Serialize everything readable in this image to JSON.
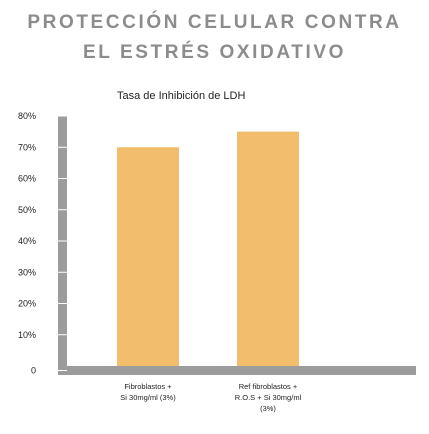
{
  "title_lines": [
    "PROTECCIÓN CELULAR CONTRA",
    "EL ESTRÉS OXIDATIVO"
  ],
  "colors": {
    "title": "#8c8c8c",
    "bar": "#f2be6c",
    "axis": "#9c9c9c",
    "gridline": "#ffffff"
  },
  "chart_data": {
    "type": "bar",
    "title": "Tasa de Inhibición de LDH",
    "xlabel": "",
    "ylabel": "",
    "ylim": [
      0,
      80
    ],
    "yticks": [
      0,
      10,
      20,
      30,
      40,
      50,
      60,
      70,
      80
    ],
    "ytick_labels": [
      "0",
      "10%",
      "20%",
      "30%",
      "40%",
      "50%",
      "60%",
      "70%",
      "80%"
    ],
    "categories": [
      [
        "Fibroblastos +",
        "Si 30mg/ml (3%)"
      ],
      [
        "Ref fibroblastos +",
        "R.O.S + Si 30mg/ml",
        "(3%)"
      ]
    ],
    "values": [
      70,
      75
    ],
    "grid": false,
    "legend": "none"
  }
}
